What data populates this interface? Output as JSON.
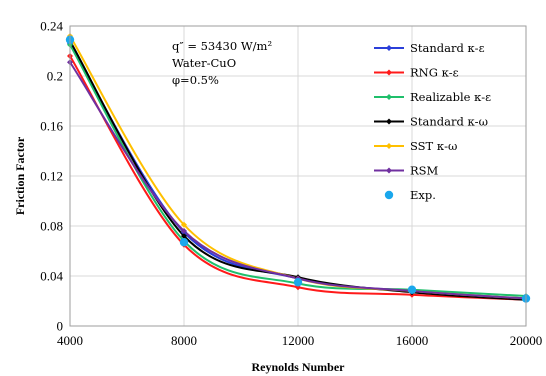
{
  "chart_data": {
    "type": "line",
    "xlabel": "Reynolds Number",
    "ylabel": "Friction Factor",
    "xlim": [
      4000,
      20000
    ],
    "ylim": [
      0,
      0.24
    ],
    "x_ticks": [
      "4000",
      "8000",
      "12000",
      "16000",
      "20000"
    ],
    "y_ticks": [
      "0",
      "0.04",
      "0.08",
      "0.12",
      "0.16",
      "0.2",
      "0.24"
    ],
    "grid": true,
    "legend_position": "right",
    "annotations": [
      "q″ = 53430 W/m²",
      "Water-CuO",
      "φ=0.5%"
    ],
    "x": [
      4000,
      8000,
      12000,
      16000,
      20000
    ],
    "series": [
      {
        "name": "Standard κ-ε",
        "color": "#2b3fd9",
        "values": [
          0.226,
          0.075,
          0.038,
          0.028,
          0.022
        ],
        "marker": "diamond"
      },
      {
        "name": "RNG κ-ε",
        "color": "#ff1a1a",
        "values": [
          0.216,
          0.065,
          0.031,
          0.025,
          0.021
        ],
        "marker": "diamond"
      },
      {
        "name": "Realizable κ-ε",
        "color": "#1fbf6b",
        "values": [
          0.225,
          0.068,
          0.034,
          0.029,
          0.024
        ],
        "marker": "diamond"
      },
      {
        "name": "Standard κ-ω",
        "color": "#000000",
        "values": [
          0.228,
          0.072,
          0.039,
          0.027,
          0.021
        ],
        "marker": "diamond"
      },
      {
        "name": "SST κ-ω",
        "color": "#ffc000",
        "values": [
          0.232,
          0.081,
          0.038,
          0.028,
          0.022
        ],
        "marker": "diamond"
      },
      {
        "name": "RSM",
        "color": "#7030a0",
        "values": [
          0.211,
          0.076,
          0.038,
          0.028,
          0.022
        ],
        "marker": "diamond"
      },
      {
        "name": "Exp.",
        "color": "#1aa7ec",
        "values": [
          0.229,
          0.067,
          0.035,
          0.029,
          0.022
        ],
        "marker": "circle",
        "line": false
      }
    ]
  }
}
